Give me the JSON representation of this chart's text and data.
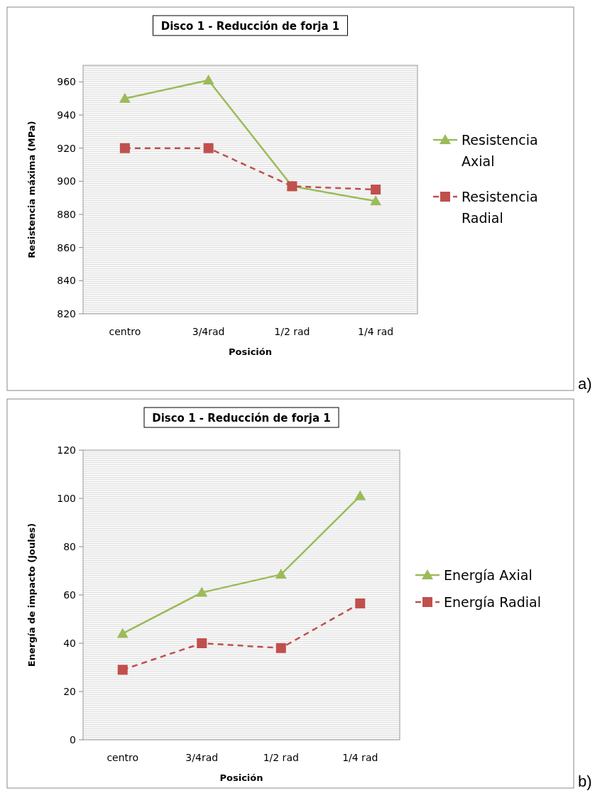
{
  "chart_data": [
    {
      "type": "line",
      "title": "Disco 1 - Reducción de forja 1",
      "xlabel": "Posición",
      "ylabel": "Resistencia máxima (MPa)",
      "categories": [
        "centro",
        "3/4rad",
        "1/2 rad",
        "1/4 rad"
      ],
      "series": [
        {
          "name": "Resistencia Axial",
          "color": "#9bbb59",
          "values": [
            950,
            961,
            897,
            888
          ],
          "marker": "triangle",
          "line_style": "solid"
        },
        {
          "name": "Resistencia Radial",
          "color": "#c0504d",
          "values": [
            920,
            920,
            897,
            895
          ],
          "marker": "square",
          "line_style": "dashed"
        }
      ],
      "ylim": [
        820,
        970
      ],
      "yticks": [
        820,
        840,
        860,
        880,
        900,
        920,
        940,
        960
      ],
      "grid": false,
      "legend": "right",
      "annotations": [
        "a)"
      ]
    },
    {
      "type": "line",
      "title": "Disco 1 - Reducción de forja 1",
      "xlabel": "Posición",
      "ylabel": "Energía de impacto (Joules)",
      "categories": [
        "centro",
        "3/4rad",
        "1/2 rad",
        "1/4 rad"
      ],
      "series": [
        {
          "name": "Energía Axial",
          "color": "#9bbb59",
          "values": [
            44,
            61,
            68.5,
            101
          ],
          "marker": "triangle",
          "line_style": "solid"
        },
        {
          "name": "Energía Radial",
          "color": "#c0504d",
          "values": [
            29,
            40,
            38,
            56.5
          ],
          "marker": "square",
          "line_style": "dashed"
        }
      ],
      "ylim": [
        0,
        120
      ],
      "yticks": [
        0,
        20,
        40,
        60,
        80,
        100,
        120
      ],
      "grid": false,
      "legend": "right",
      "annotations": [
        "b)"
      ]
    }
  ]
}
